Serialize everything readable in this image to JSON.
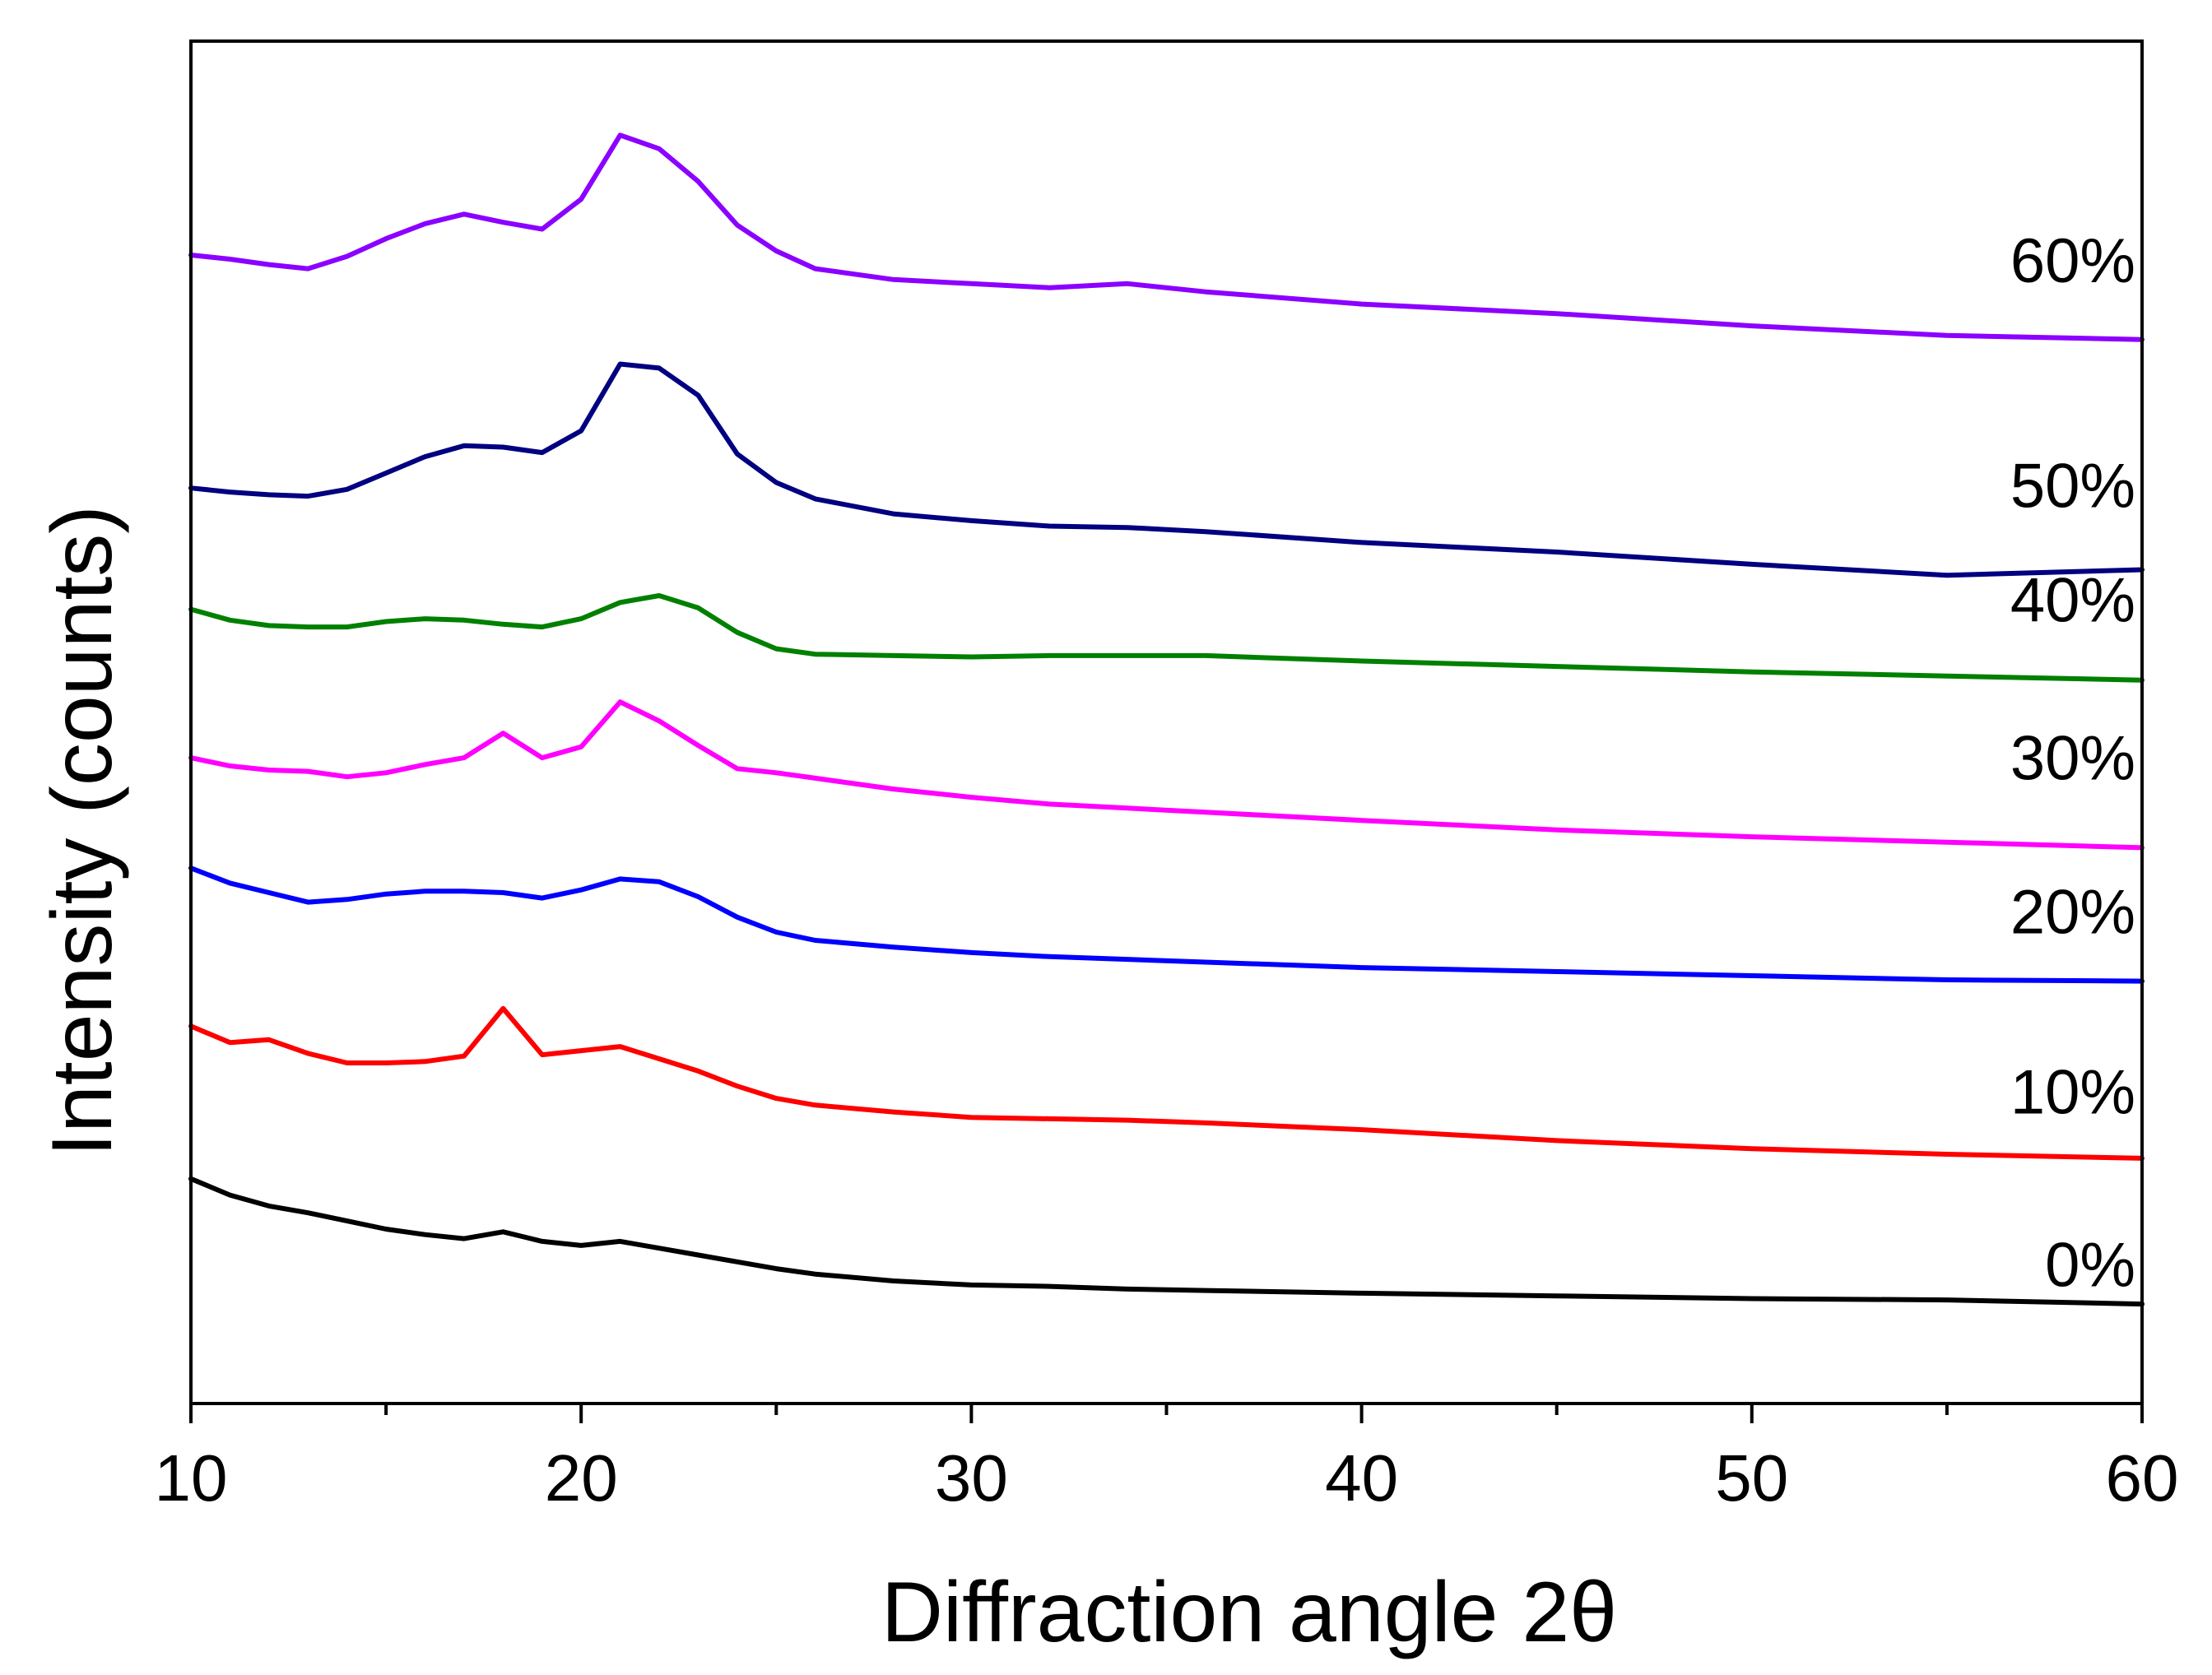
{
  "chart_data": {
    "type": "line",
    "title": "",
    "xlabel": "Diffraction angle 2θ",
    "ylabel": "Intensity (counts)",
    "xlim": [
      10,
      60
    ],
    "ylim": [
      0,
      100
    ],
    "yticks_shown": false,
    "grid": false,
    "x_ticks": [
      {
        "value": 10,
        "label": "10"
      },
      {
        "value": 20,
        "label": "20"
      },
      {
        "value": 30,
        "label": "30"
      },
      {
        "value": 40,
        "label": "40"
      },
      {
        "value": 50,
        "label": "50"
      },
      {
        "value": 60,
        "label": "60"
      }
    ],
    "x_minor_ticks": [
      15,
      25,
      35,
      45,
      55
    ],
    "x": [
      10,
      11,
      12,
      13,
      14,
      15,
      16,
      17,
      18,
      19,
      20,
      21,
      22,
      23,
      24,
      25,
      26,
      28,
      30,
      32,
      34,
      36,
      40,
      45,
      50,
      55,
      60
    ],
    "series": [
      {
        "name": "0%",
        "label": "0%",
        "color": "#000000",
        "label_y": 8.6,
        "values": [
          16.5,
          15.3,
          14.5,
          14.0,
          13.4,
          12.8,
          12.4,
          12.1,
          12.6,
          11.9,
          11.6,
          11.9,
          11.4,
          10.9,
          10.4,
          9.9,
          9.5,
          9.0,
          8.7,
          8.6,
          8.4,
          8.3,
          8.1,
          7.9,
          7.7,
          7.6,
          7.3
        ]
      },
      {
        "name": "10%",
        "label": "10%",
        "color": "#ff0000",
        "label_y": 21.3,
        "values": [
          27.7,
          26.5,
          26.7,
          25.7,
          25.0,
          25.0,
          25.1,
          25.5,
          29.0,
          25.6,
          25.9,
          26.2,
          25.3,
          24.4,
          23.3,
          22.4,
          21.9,
          21.4,
          21.0,
          20.9,
          20.8,
          20.6,
          20.1,
          19.3,
          18.7,
          18.3,
          18.0
        ]
      },
      {
        "name": "20%",
        "label": "20%",
        "color": "#0000ff",
        "label_y": 34.5,
        "values": [
          39.3,
          38.2,
          37.5,
          36.8,
          37.0,
          37.4,
          37.6,
          37.6,
          37.5,
          37.1,
          37.7,
          38.5,
          38.3,
          37.2,
          35.7,
          34.6,
          34.0,
          33.5,
          33.1,
          32.8,
          32.6,
          32.4,
          32.0,
          31.7,
          31.4,
          31.1,
          31.0
        ]
      },
      {
        "name": "30%",
        "label": "30%",
        "color": "#ff00ff",
        "label_y": 45.8,
        "values": [
          47.4,
          46.8,
          46.5,
          46.4,
          46.0,
          46.3,
          46.9,
          47.4,
          49.2,
          47.4,
          48.2,
          51.5,
          50.1,
          48.3,
          46.6,
          46.3,
          45.9,
          45.1,
          44.5,
          44.0,
          43.7,
          43.4,
          42.8,
          42.1,
          41.6,
          41.2,
          40.8
        ]
      },
      {
        "name": "40%",
        "label": "40%",
        "color": "#008000",
        "label_y": 57.4,
        "values": [
          58.3,
          57.5,
          57.1,
          57.0,
          57.0,
          57.4,
          57.6,
          57.5,
          57.2,
          57.0,
          57.6,
          58.8,
          59.3,
          58.4,
          56.6,
          55.4,
          55.0,
          54.9,
          54.8,
          54.9,
          54.9,
          54.9,
          54.5,
          54.1,
          53.7,
          53.4,
          53.1
        ]
      },
      {
        "name": "50%",
        "label": "50%",
        "color": "#000080",
        "label_y": 65.8,
        "values": [
          67.2,
          66.9,
          66.7,
          66.6,
          67.1,
          68.3,
          69.5,
          70.3,
          70.2,
          69.8,
          71.4,
          76.3,
          76.0,
          74.0,
          69.7,
          67.6,
          66.4,
          65.3,
          64.8,
          64.4,
          64.3,
          64.0,
          63.2,
          62.5,
          61.6,
          60.8,
          61.2
        ]
      },
      {
        "name": "60%",
        "label": "60%",
        "color": "#8b00ff",
        "label_y": 82.3,
        "values": [
          84.3,
          84.0,
          83.6,
          83.3,
          84.2,
          85.5,
          86.6,
          87.3,
          86.7,
          86.2,
          88.4,
          93.1,
          92.1,
          89.7,
          86.5,
          84.6,
          83.3,
          82.5,
          82.2,
          81.9,
          82.2,
          81.6,
          80.7,
          80.0,
          79.1,
          78.4,
          78.1
        ]
      }
    ]
  }
}
